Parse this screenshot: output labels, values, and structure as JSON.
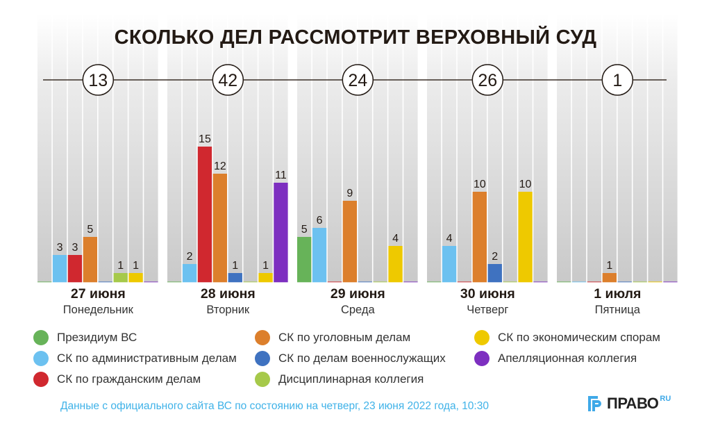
{
  "chart_data": {
    "type": "bar",
    "title": "СКОЛЬКО ДЕЛ РАССМОТРИТ ВЕРХОВНЫЙ СУД",
    "xlabel": "",
    "ylabel": "",
    "ylim": [
      0,
      15
    ],
    "grid": false,
    "legend_position": "bottom",
    "categories": [
      {
        "date": "27 июня",
        "weekday": "Понедельник",
        "total": "13"
      },
      {
        "date": "28 июня",
        "weekday": "Вторник",
        "total": "42"
      },
      {
        "date": "29 июня",
        "weekday": "Среда",
        "total": "24"
      },
      {
        "date": "30 июня",
        "weekday": "Четверг",
        "total": "26"
      },
      {
        "date": "1 июля",
        "weekday": "Пятница",
        "total": "1"
      }
    ],
    "series": [
      {
        "name": "Президиум ВС",
        "color": "#67b359",
        "values": [
          0,
          0,
          5,
          0,
          0
        ]
      },
      {
        "name": "СК по административным делам",
        "color": "#6cc1f0",
        "values": [
          3,
          2,
          6,
          4,
          0
        ]
      },
      {
        "name": "СК по гражданским делам",
        "color": "#d0282f",
        "values": [
          3,
          15,
          0,
          0,
          0
        ]
      },
      {
        "name": "СК по уголовным делам",
        "color": "#dc7f2c",
        "values": [
          5,
          12,
          9,
          10,
          1
        ]
      },
      {
        "name": "СК по делам военнослужащих",
        "color": "#3f72c0",
        "values": [
          0,
          1,
          0,
          2,
          0
        ]
      },
      {
        "name": "Дисциплинарная коллегия",
        "color": "#a6c94a",
        "values": [
          1,
          0,
          0,
          0,
          0
        ]
      },
      {
        "name": "СК по экономическим спорам",
        "color": "#eec900",
        "values": [
          1,
          1,
          4,
          10,
          0
        ]
      },
      {
        "name": "Апелляционная коллегия",
        "color": "#7d2fc0",
        "values": [
          0,
          11,
          0,
          0,
          0
        ]
      }
    ]
  },
  "footer": {
    "note": "Данные с официального сайта ВС по состоянию на четверг, 23 июня 2022 года, 10:30",
    "logo_text": "ПРАВО",
    "logo_suffix": "RU"
  }
}
